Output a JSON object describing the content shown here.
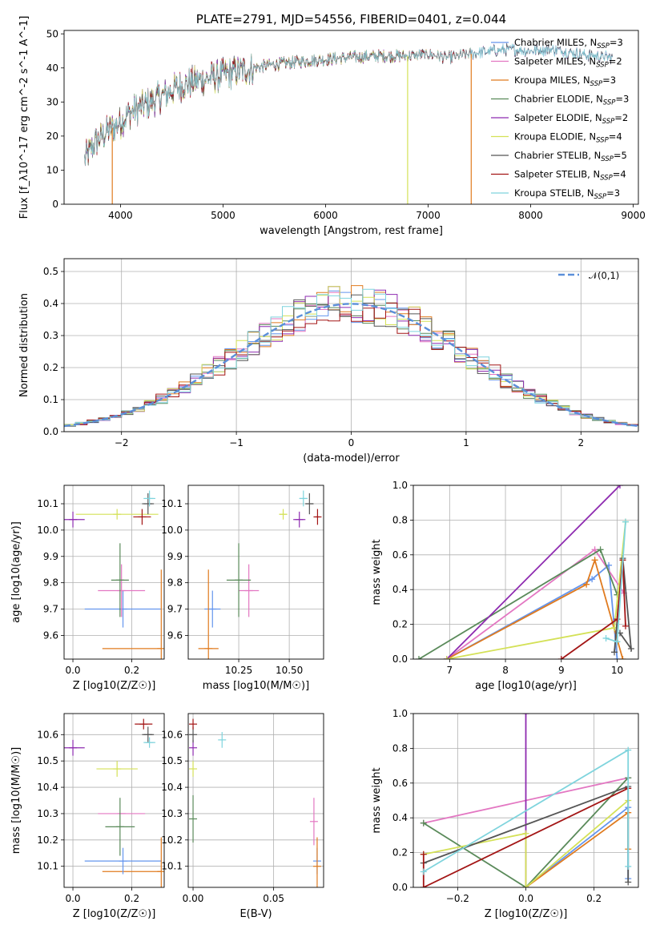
{
  "colors": {
    "chabrier_miles": "#6495ED",
    "salpeter_miles": "#E377C2",
    "kroupa_miles": "#E07B1F",
    "chabrier_elodie": "#5A8A5A",
    "salpeter_elodie": "#8E2BB0",
    "kroupa_elodie": "#D4E157",
    "chabrier_stelib": "#555555",
    "salpeter_stelib": "#A31515",
    "kroupa_stelib": "#7FD4DD",
    "normal": "#5B8FD9",
    "grid": "#b0b0b0"
  },
  "chart_data": [
    {
      "id": "spectrum",
      "type": "line",
      "title": "PLATE=2791, MJD=54556, FIBERID=0401, z=0.044",
      "xlabel": "wavelength [Angstrom, rest frame]",
      "ylabel": "Flux [f_λ10^-17 erg cm^-2 s^-1 A^-1]",
      "xlim": [
        3450,
        9050
      ],
      "ylim": [
        0,
        51
      ],
      "xticks": [
        "4000",
        "5000",
        "6000",
        "7000",
        "8000",
        "9000"
      ],
      "yticks": [
        "0",
        "10",
        "20",
        "30",
        "40",
        "50"
      ],
      "grid": false,
      "legend_position": "right",
      "x_range_data": [
        3650,
        8800
      ],
      "continuum": [
        [
          3650,
          13
        ],
        [
          3750,
          18
        ],
        [
          3900,
          22
        ],
        [
          4000,
          24
        ],
        [
          4100,
          27
        ],
        [
          4300,
          30
        ],
        [
          4600,
          35
        ],
        [
          5000,
          38
        ],
        [
          5300,
          40
        ],
        [
          5500,
          41
        ],
        [
          5800,
          42
        ],
        [
          6000,
          42.5
        ],
        [
          6200,
          43
        ],
        [
          6500,
          43.5
        ],
        [
          6800,
          43.5
        ],
        [
          7000,
          44
        ],
        [
          7200,
          43
        ],
        [
          7500,
          44.5
        ],
        [
          7800,
          45.5
        ],
        [
          8000,
          45
        ],
        [
          8200,
          45.5
        ],
        [
          8500,
          44
        ],
        [
          8800,
          43
        ]
      ],
      "series": [
        {
          "name": "Chabrier MILES, N_SSP=3",
          "color_key": "chabrier_miles",
          "end": 8800
        },
        {
          "name": "Salpeter MILES, N_SSP=2",
          "color_key": "salpeter_miles",
          "end": 8800
        },
        {
          "name": "Kroupa MILES, N_SSP=3",
          "color_key": "kroupa_miles",
          "end": 7420
        },
        {
          "name": "Chabrier ELODIE, N_SSP=3",
          "color_key": "chabrier_elodie",
          "end": 6800
        },
        {
          "name": "Salpeter ELODIE, N_SSP=2",
          "color_key": "salpeter_elodie",
          "end": 6800
        },
        {
          "name": "Kroupa ELODIE, N_SSP=4",
          "color_key": "kroupa_elodie",
          "end": 6800
        },
        {
          "name": "Chabrier STELIB, N_SSP=5",
          "color_key": "chabrier_stelib",
          "end": 8800
        },
        {
          "name": "Salpeter STELIB, N_SSP=4",
          "color_key": "salpeter_stelib",
          "end": 7420
        },
        {
          "name": "Kroupa STELIB, N_SSP=3",
          "color_key": "kroupa_stelib",
          "end": 8800
        }
      ],
      "drops": [
        [
          3920,
          "kroupa_miles"
        ],
        [
          6800,
          "kroupa_elodie"
        ],
        [
          7420,
          "kroupa_miles"
        ]
      ]
    },
    {
      "id": "residuals",
      "type": "bar",
      "xlabel": "(data-model)/error",
      "ylabel": "Normed distribution",
      "xlim": [
        -2.5,
        2.5
      ],
      "ylim": [
        0,
        0.54
      ],
      "xticks": [
        "−2",
        "−1",
        "0",
        "1",
        "2"
      ],
      "yticks": [
        "0.0",
        "0.1",
        "0.2",
        "0.3",
        "0.4",
        "0.5"
      ],
      "grid": true,
      "legend_position": "top-right",
      "legend": [
        "𝒩(0,1)"
      ],
      "bin_width": 0.1
    },
    {
      "id": "age_vs_Z",
      "type": "scatter",
      "xlabel": "Z [log10(Z/Z☉)]",
      "ylabel": "age  [log10(age/yr)]",
      "xlim": [
        -0.03,
        0.31
      ],
      "ylim": [
        9.51,
        10.17
      ],
      "xticks": [
        "0.0",
        "0.2"
      ],
      "yticks": [
        "9.6",
        "9.7",
        "9.8",
        "9.9",
        "10.0",
        "10.1"
      ],
      "grid": true,
      "points": [
        {
          "c": "chabrier_miles",
          "x": 0.17,
          "y": 9.7,
          "xerr": 0.13,
          "yerr": 0.07
        },
        {
          "c": "salpeter_miles",
          "x": 0.165,
          "y": 9.77,
          "xerr": 0.08,
          "yerr": 0.1
        },
        {
          "c": "kroupa_miles",
          "x": 0.3,
          "y": 9.55,
          "xerr": 0.0,
          "yerr": 0.3
        },
        {
          "c": "chabrier_elodie",
          "x": 0.16,
          "y": 9.81,
          "xerr": 0.03,
          "yerr": 0.14
        },
        {
          "c": "salpeter_elodie",
          "x": 0.0,
          "y": 10.04,
          "xerr": 0.04,
          "yerr": 0.03
        },
        {
          "c": "kroupa_elodie",
          "x": 0.15,
          "y": 10.06,
          "xerr": 0.14,
          "yerr": 0.02
        },
        {
          "c": "chabrier_stelib",
          "x": 0.255,
          "y": 10.1,
          "xerr": 0.02,
          "yerr": 0.04
        },
        {
          "c": "salpeter_stelib",
          "x": 0.235,
          "y": 10.05,
          "xerr": 0.03,
          "yerr": 0.03
        },
        {
          "c": "kroupa_stelib",
          "x": 0.26,
          "y": 10.12,
          "xerr": 0.02,
          "yerr": 0.03
        }
      ],
      "hbars": [
        {
          "c": "kroupa_miles",
          "x0": 0.1,
          "x1": 0.3,
          "y": 9.55
        }
      ]
    },
    {
      "id": "age_vs_mass",
      "type": "scatter",
      "xlabel": "mass [log10(M/M☉)]",
      "ylabel": "",
      "xlim": [
        10.0,
        10.67
      ],
      "ylim": [
        9.51,
        10.17
      ],
      "xticks": [
        "10.25",
        "10.50"
      ],
      "yticks": [
        "9.6",
        "9.7",
        "9.8",
        "9.9",
        "10.0",
        "10.1"
      ],
      "grid": true,
      "points": [
        {
          "c": "chabrier_miles",
          "x": 10.12,
          "y": 9.7,
          "xerr": 0.04,
          "yerr": 0.07
        },
        {
          "c": "salpeter_miles",
          "x": 10.3,
          "y": 9.77,
          "xerr": 0.05,
          "yerr": 0.1
        },
        {
          "c": "kroupa_miles",
          "x": 10.1,
          "y": 9.55,
          "xerr": 0.05,
          "yerr": 0.3
        },
        {
          "c": "chabrier_elodie",
          "x": 10.25,
          "y": 9.81,
          "xerr": 0.06,
          "yerr": 0.14
        },
        {
          "c": "salpeter_elodie",
          "x": 10.55,
          "y": 10.04,
          "xerr": 0.03,
          "yerr": 0.03
        },
        {
          "c": "kroupa_elodie",
          "x": 10.47,
          "y": 10.06,
          "xerr": 0.02,
          "yerr": 0.02
        },
        {
          "c": "chabrier_stelib",
          "x": 10.6,
          "y": 10.1,
          "xerr": 0.02,
          "yerr": 0.04
        },
        {
          "c": "salpeter_stelib",
          "x": 10.64,
          "y": 10.05,
          "xerr": 0.01,
          "yerr": 0.03
        },
        {
          "c": "kroupa_stelib",
          "x": 10.57,
          "y": 10.12,
          "xerr": 0.02,
          "yerr": 0.03
        }
      ]
    },
    {
      "id": "weight_vs_age",
      "type": "line",
      "xlabel": "age  [log10(age/yr)]",
      "ylabel": "mass weight",
      "xlim": [
        6.35,
        10.38
      ],
      "ylim": [
        0,
        1.0
      ],
      "xticks": [
        "7",
        "8",
        "9",
        "10"
      ],
      "yticks": [
        "0.0",
        "0.2",
        "0.4",
        "0.6",
        "0.8",
        "1.0"
      ],
      "grid": true,
      "series": [
        {
          "c": "chabrier_miles",
          "pts": [
            [
              6.95,
              0.0
            ],
            [
              9.55,
              0.46
            ],
            [
              9.85,
              0.54
            ],
            [
              10.0,
              0.0
            ]
          ]
        },
        {
          "c": "salpeter_miles",
          "pts": [
            [
              6.95,
              0.0
            ],
            [
              9.6,
              0.63
            ],
            [
              10.12,
              0.38
            ]
          ]
        },
        {
          "c": "kroupa_miles",
          "pts": [
            [
              6.95,
              0.0
            ],
            [
              9.45,
              0.43
            ],
            [
              9.6,
              0.57
            ],
            [
              10.1,
              0.0
            ]
          ]
        },
        {
          "c": "chabrier_elodie",
          "pts": [
            [
              6.45,
              0.0
            ],
            [
              9.7,
              0.63
            ],
            [
              10.0,
              0.37
            ]
          ]
        },
        {
          "c": "salpeter_elodie",
          "pts": [
            [
              6.95,
              0.0
            ],
            [
              10.05,
              1.0
            ]
          ]
        },
        {
          "c": "kroupa_elodie",
          "pts": [
            [
              6.95,
              0.0
            ],
            [
              9.95,
              0.18
            ],
            [
              10.15,
              0.79
            ]
          ]
        },
        {
          "c": "chabrier_stelib",
          "pts": [
            [
              9.95,
              0.04
            ],
            [
              10.1,
              0.58
            ],
            [
              10.25,
              0.06
            ],
            [
              10.05,
              0.15
            ]
          ]
        },
        {
          "c": "salpeter_stelib",
          "pts": [
            [
              9.0,
              0.0
            ],
            [
              10.0,
              0.23
            ],
            [
              10.1,
              0.57
            ],
            [
              10.15,
              0.19
            ]
          ]
        },
        {
          "c": "kroupa_stelib",
          "pts": [
            [
              9.8,
              0.12
            ],
            [
              10.0,
              0.1
            ],
            [
              10.15,
              0.79
            ]
          ]
        }
      ]
    },
    {
      "id": "mass_vs_Z",
      "type": "scatter",
      "xlabel": "Z [log10(Z/Z☉)]",
      "ylabel": "mass [log10(M/M☉)]",
      "xlim": [
        -0.03,
        0.31
      ],
      "ylim": [
        10.02,
        10.68
      ],
      "xticks": [
        "0.0",
        "0.2"
      ],
      "yticks": [
        "10.1",
        "10.2",
        "10.3",
        "10.4",
        "10.5",
        "10.6"
      ],
      "grid": true,
      "points": [
        {
          "c": "chabrier_miles",
          "x": 0.17,
          "y": 10.12,
          "xerr": 0.13,
          "yerr": 0.05
        },
        {
          "c": "salpeter_miles",
          "x": 0.165,
          "y": 10.3,
          "xerr": 0.08,
          "yerr": 0.0
        },
        {
          "c": "kroupa_miles",
          "x": 0.3,
          "y": 10.08,
          "xerr": 0.0,
          "yerr": 0.13
        },
        {
          "c": "chabrier_elodie",
          "x": 0.16,
          "y": 10.25,
          "xerr": 0.05,
          "yerr": 0.11
        },
        {
          "c": "salpeter_elodie",
          "x": 0.0,
          "y": 10.55,
          "xerr": 0.04,
          "yerr": 0.03
        },
        {
          "c": "kroupa_elodie",
          "x": 0.15,
          "y": 10.47,
          "xerr": 0.07,
          "yerr": 0.03
        },
        {
          "c": "chabrier_stelib",
          "x": 0.255,
          "y": 10.6,
          "xerr": 0.02,
          "yerr": 0.03
        },
        {
          "c": "salpeter_stelib",
          "x": 0.24,
          "y": 10.64,
          "xerr": 0.03,
          "yerr": 0.02
        },
        {
          "c": "kroupa_stelib",
          "x": 0.26,
          "y": 10.57,
          "xerr": 0.02,
          "yerr": 0.02
        }
      ],
      "hbars": [
        {
          "c": "kroupa_miles",
          "x0": 0.1,
          "x1": 0.3,
          "y": 10.08
        }
      ]
    },
    {
      "id": "mass_vs_ebv",
      "type": "scatter",
      "xlabel": "E(B-V)",
      "ylabel": "",
      "xlim": [
        -0.003,
        0.081
      ],
      "ylim": [
        10.02,
        10.68
      ],
      "xticks": [
        "0.00",
        "0.05"
      ],
      "yticks": [
        "10.1",
        "10.2",
        "10.3",
        "10.4",
        "10.5",
        "10.6"
      ],
      "grid": true,
      "points": [
        {
          "c": "chabrier_miles",
          "x": 0.077,
          "y": 10.12,
          "xerr": 0.0,
          "yerr": 0.05
        },
        {
          "c": "salpeter_miles",
          "x": 0.075,
          "y": 10.27,
          "xerr": 0.0,
          "yerr": 0.09
        },
        {
          "c": "kroupa_miles",
          "x": 0.077,
          "y": 10.1,
          "xerr": 0.0,
          "yerr": 0.11
        },
        {
          "c": "chabrier_elodie",
          "x": 0.0,
          "y": 10.28,
          "xerr": 0.0,
          "yerr": 0.09
        },
        {
          "c": "salpeter_elodie",
          "x": 0.0,
          "y": 10.55,
          "xerr": 0.0,
          "yerr": 0.03
        },
        {
          "c": "kroupa_elodie",
          "x": 0.0,
          "y": 10.47,
          "xerr": 0.0,
          "yerr": 0.03
        },
        {
          "c": "chabrier_stelib",
          "x": 0.0,
          "y": 10.6,
          "xerr": 0.0,
          "yerr": 0.03
        },
        {
          "c": "salpeter_stelib",
          "x": 0.0,
          "y": 10.64,
          "xerr": 0.0,
          "yerr": 0.02
        },
        {
          "c": "kroupa_stelib",
          "x": 0.018,
          "y": 10.58,
          "xerr": 0.0,
          "yerr": 0.03
        }
      ]
    },
    {
      "id": "weight_vs_Z",
      "type": "line",
      "xlabel": "Z [log10(Z/Z☉)]",
      "ylabel": "mass weight",
      "xlim": [
        -0.33,
        0.33
      ],
      "ylim": [
        0,
        1.0
      ],
      "xticks": [
        "−0.2",
        "0.0",
        "0.2"
      ],
      "yticks": [
        "0.0",
        "0.2",
        "0.4",
        "0.6",
        "0.8",
        "1.0"
      ],
      "grid": true,
      "series": [
        {
          "c": "chabrier_miles",
          "pts": [
            [
              0.0,
              0.0
            ],
            [
              0.3,
              0.46
            ],
            [
              0.3,
              0.05
            ]
          ]
        },
        {
          "c": "salpeter_miles",
          "pts": [
            [
              -0.3,
              0.37
            ],
            [
              0.3,
              0.63
            ]
          ]
        },
        {
          "c": "kroupa_miles",
          "pts": [
            [
              0.0,
              0.0
            ],
            [
              0.3,
              0.43
            ],
            [
              0.3,
              0.22
            ]
          ]
        },
        {
          "c": "chabrier_elodie",
          "pts": [
            [
              -0.3,
              0.37
            ],
            [
              0.0,
              0.0
            ],
            [
              0.3,
              0.63
            ]
          ]
        },
        {
          "c": "salpeter_elodie",
          "pts": [
            [
              0.0,
              1.0
            ],
            [
              0.0,
              0.0
            ]
          ]
        },
        {
          "c": "kroupa_elodie",
          "pts": [
            [
              -0.3,
              0.19
            ],
            [
              0.0,
              0.31
            ],
            [
              0.0,
              0.0
            ],
            [
              0.3,
              0.5
            ]
          ]
        },
        {
          "c": "chabrier_stelib",
          "pts": [
            [
              -0.3,
              0.14
            ],
            [
              0.3,
              0.58
            ],
            [
              0.3,
              0.03
            ]
          ]
        },
        {
          "c": "salpeter_stelib",
          "pts": [
            [
              -0.3,
              0.19
            ],
            [
              -0.3,
              0.0
            ],
            [
              0.3,
              0.57
            ]
          ]
        },
        {
          "c": "kroupa_stelib",
          "pts": [
            [
              -0.3,
              0.09
            ],
            [
              0.3,
              0.79
            ],
            [
              0.3,
              0.12
            ]
          ]
        }
      ]
    }
  ]
}
